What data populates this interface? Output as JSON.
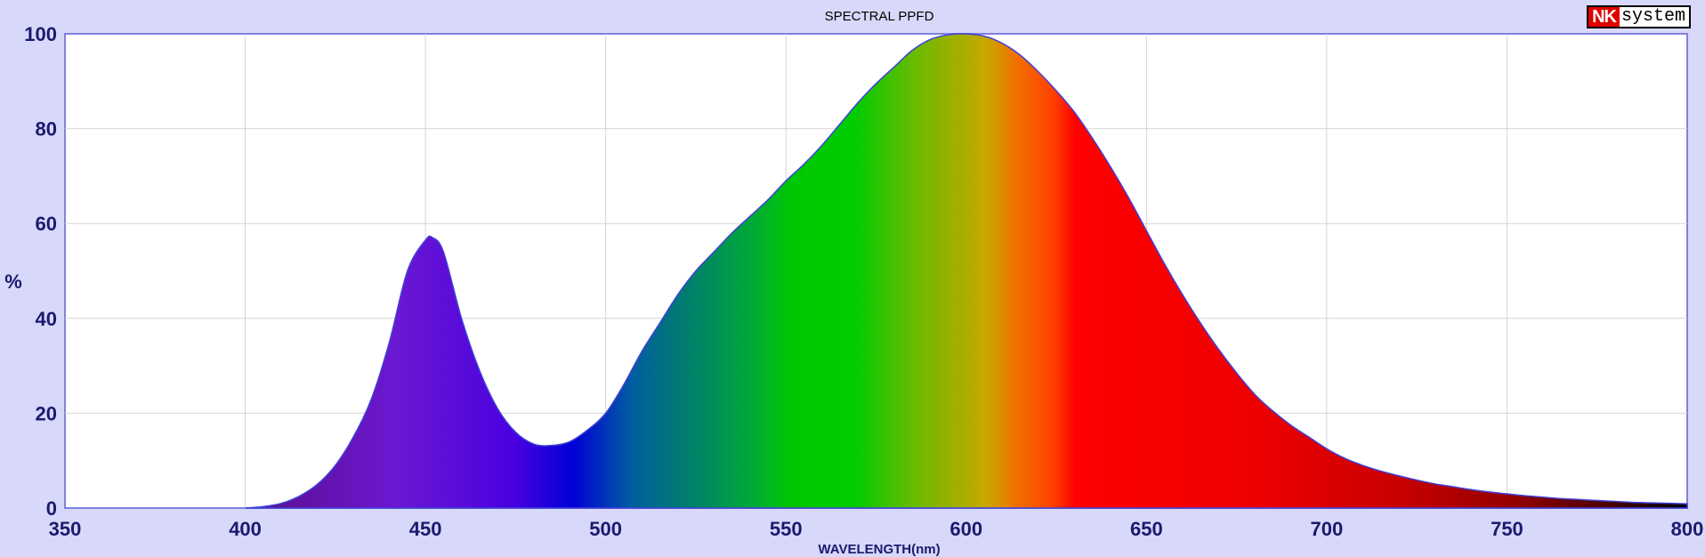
{
  "logo": {
    "brand_a": "NK",
    "brand_b": "system"
  },
  "chart_data": {
    "type": "area",
    "title": "SPECTRAL PPFD",
    "xlabel": "WAVELENGTH(nm)",
    "ylabel": "%",
    "xlim": [
      350,
      800
    ],
    "ylim": [
      0,
      100
    ],
    "xticks": [
      350,
      400,
      450,
      500,
      550,
      600,
      650,
      700,
      750,
      800
    ],
    "yticks": [
      0,
      20,
      40,
      60,
      80,
      100
    ],
    "grid": true,
    "fill": "visible spectrum color gradient",
    "series": [
      {
        "x": [
          400,
          405,
          410,
          415,
          420,
          425,
          430,
          435,
          440,
          445,
          450,
          452,
          455,
          460,
          465,
          470,
          475,
          480,
          485,
          490,
          495,
          500,
          505,
          510,
          515,
          520,
          525,
          530,
          535,
          540,
          545,
          550,
          555,
          560,
          565,
          570,
          575,
          580,
          585,
          590,
          595,
          600,
          605,
          610,
          615,
          620,
          625,
          630,
          635,
          640,
          645,
          650,
          655,
          660,
          665,
          670,
          675,
          680,
          685,
          690,
          695,
          700,
          705,
          710,
          715,
          720,
          725,
          730,
          735,
          740,
          745,
          750,
          755,
          760,
          765,
          770,
          775,
          780,
          785,
          790,
          795,
          800
        ],
        "y": [
          0,
          0.3,
          1.0,
          2.5,
          5,
          9,
          15,
          23,
          35,
          50,
          56.5,
          57,
          54,
          40,
          29,
          21,
          16,
          13.5,
          13.2,
          14,
          16.5,
          20,
          26,
          33,
          39,
          45,
          50,
          54,
          58,
          61.5,
          65,
          69,
          72.5,
          76.5,
          81,
          85.5,
          89.5,
          93,
          96.5,
          98.8,
          99.8,
          100,
          99.5,
          98,
          95.5,
          92,
          88,
          83.5,
          78,
          72,
          65.5,
          58.5,
          51.5,
          45,
          39,
          33.5,
          28.5,
          24,
          20.5,
          17.5,
          15,
          12.5,
          10.5,
          9,
          7.8,
          6.8,
          5.9,
          5.1,
          4.5,
          3.9,
          3.4,
          3.0,
          2.6,
          2.3,
          2.0,
          1.8,
          1.6,
          1.4,
          1.2,
          1.1,
          1.0,
          0.9
        ]
      }
    ]
  }
}
